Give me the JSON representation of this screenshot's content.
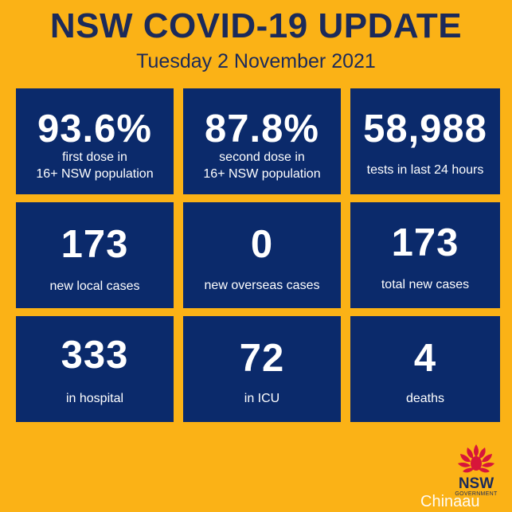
{
  "header": {
    "title": "NSW COVID-19 UPDATE",
    "date": "Tuesday 2 November 2021"
  },
  "stats": [
    {
      "value": "93.6%",
      "label": "first dose in\n16+ NSW population"
    },
    {
      "value": "87.8%",
      "label": "second dose in\n16+ NSW population"
    },
    {
      "value": "58,988",
      "label": "tests in last 24 hours"
    },
    {
      "value": "173",
      "label": "new local cases"
    },
    {
      "value": "0",
      "label": "new overseas cases"
    },
    {
      "value": "173",
      "label": "total new cases"
    },
    {
      "value": "333",
      "label": "in hospital"
    },
    {
      "value": "72",
      "label": "in ICU"
    },
    {
      "value": "4",
      "label": "deaths"
    }
  ],
  "logo": {
    "text": "NSW",
    "subtext": "GOVERNMENT",
    "icon": "waratah-flower-icon"
  },
  "watermark": "Chinaau",
  "colors": {
    "background": "#fbb216",
    "tile": "#0b2a6b",
    "heading": "#1b2a5a",
    "logo_red": "#d7153a"
  }
}
